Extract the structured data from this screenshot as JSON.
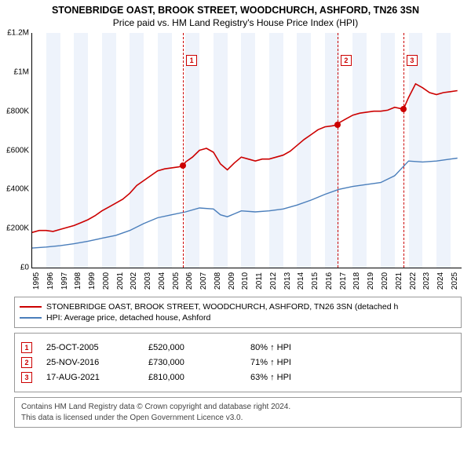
{
  "title": {
    "line1": "STONEBRIDGE OAST, BROOK STREET, WOODCHURCH, ASHFORD, TN26 3SN",
    "line2": "Price paid vs. HM Land Registry's House Price Index (HPI)",
    "fontsize_line1": 12.5,
    "fontsize_line2": 12
  },
  "chart": {
    "type": "line",
    "background_color": "#ffffff",
    "band_color": "#eef3fb",
    "axis_color": "#000000",
    "xlim": [
      1995,
      2025.8
    ],
    "ylim": [
      0,
      1200000
    ],
    "yticks": [
      {
        "v": 0,
        "label": "£0"
      },
      {
        "v": 200000,
        "label": "£200K"
      },
      {
        "v": 400000,
        "label": "£400K"
      },
      {
        "v": 600000,
        "label": "£600K"
      },
      {
        "v": 800000,
        "label": "£800K"
      },
      {
        "v": 1000000,
        "label": "£1M"
      },
      {
        "v": 1200000,
        "label": "£1.2M"
      }
    ],
    "xticks": [
      1995,
      1996,
      1997,
      1998,
      1999,
      2000,
      2001,
      2002,
      2003,
      2004,
      2005,
      2006,
      2007,
      2008,
      2009,
      2010,
      2011,
      2012,
      2013,
      2014,
      2015,
      2016,
      2017,
      2018,
      2019,
      2020,
      2021,
      2022,
      2023,
      2024,
      2025
    ],
    "series": [
      {
        "name": "property",
        "color": "#cc0000",
        "width": 1.6,
        "points": [
          [
            1995,
            180000
          ],
          [
            1995.5,
            190000
          ],
          [
            1996,
            190000
          ],
          [
            1996.5,
            185000
          ],
          [
            1997,
            195000
          ],
          [
            1997.5,
            205000
          ],
          [
            1998,
            215000
          ],
          [
            1998.5,
            230000
          ],
          [
            1999,
            245000
          ],
          [
            1999.5,
            265000
          ],
          [
            2000,
            290000
          ],
          [
            2000.5,
            310000
          ],
          [
            2001,
            330000
          ],
          [
            2001.5,
            350000
          ],
          [
            2002,
            380000
          ],
          [
            2002.5,
            420000
          ],
          [
            2003,
            445000
          ],
          [
            2003.5,
            470000
          ],
          [
            2004,
            495000
          ],
          [
            2004.5,
            505000
          ],
          [
            2005,
            510000
          ],
          [
            2005.5,
            515000
          ],
          [
            2005.82,
            520000
          ],
          [
            2006,
            540000
          ],
          [
            2006.5,
            565000
          ],
          [
            2007,
            600000
          ],
          [
            2007.5,
            610000
          ],
          [
            2008,
            590000
          ],
          [
            2008.5,
            530000
          ],
          [
            2009,
            500000
          ],
          [
            2009.5,
            535000
          ],
          [
            2010,
            565000
          ],
          [
            2010.5,
            555000
          ],
          [
            2011,
            545000
          ],
          [
            2011.5,
            555000
          ],
          [
            2012,
            555000
          ],
          [
            2012.5,
            565000
          ],
          [
            2013,
            575000
          ],
          [
            2013.5,
            595000
          ],
          [
            2014,
            625000
          ],
          [
            2014.5,
            655000
          ],
          [
            2015,
            680000
          ],
          [
            2015.5,
            705000
          ],
          [
            2016,
            720000
          ],
          [
            2016.5,
            725000
          ],
          [
            2016.9,
            730000
          ],
          [
            2017,
            740000
          ],
          [
            2017.5,
            760000
          ],
          [
            2018,
            780000
          ],
          [
            2018.5,
            790000
          ],
          [
            2019,
            795000
          ],
          [
            2019.5,
            800000
          ],
          [
            2020,
            800000
          ],
          [
            2020.5,
            805000
          ],
          [
            2021,
            820000
          ],
          [
            2021.63,
            810000
          ],
          [
            2022,
            870000
          ],
          [
            2022.5,
            940000
          ],
          [
            2023,
            920000
          ],
          [
            2023.5,
            895000
          ],
          [
            2024,
            885000
          ],
          [
            2024.5,
            895000
          ],
          [
            2025,
            900000
          ],
          [
            2025.5,
            905000
          ]
        ]
      },
      {
        "name": "hpi",
        "color": "#4a7ebb",
        "width": 1.4,
        "points": [
          [
            1995,
            100000
          ],
          [
            1996,
            105000
          ],
          [
            1997,
            112000
          ],
          [
            1998,
            122000
          ],
          [
            1999,
            135000
          ],
          [
            2000,
            150000
          ],
          [
            2001,
            165000
          ],
          [
            2002,
            190000
          ],
          [
            2003,
            225000
          ],
          [
            2004,
            255000
          ],
          [
            2005,
            270000
          ],
          [
            2006,
            285000
          ],
          [
            2007,
            305000
          ],
          [
            2008,
            300000
          ],
          [
            2008.5,
            270000
          ],
          [
            2009,
            260000
          ],
          [
            2009.5,
            275000
          ],
          [
            2010,
            290000
          ],
          [
            2011,
            285000
          ],
          [
            2012,
            290000
          ],
          [
            2013,
            300000
          ],
          [
            2014,
            320000
          ],
          [
            2015,
            345000
          ],
          [
            2016,
            375000
          ],
          [
            2017,
            400000
          ],
          [
            2018,
            415000
          ],
          [
            2019,
            425000
          ],
          [
            2020,
            435000
          ],
          [
            2021,
            470000
          ],
          [
            2022,
            545000
          ],
          [
            2023,
            540000
          ],
          [
            2024,
            545000
          ],
          [
            2025,
            555000
          ],
          [
            2025.5,
            560000
          ]
        ]
      }
    ],
    "markers": [
      {
        "n": "1",
        "year": 2005.82,
        "value": 520000
      },
      {
        "n": "2",
        "year": 2016.9,
        "value": 730000
      },
      {
        "n": "3",
        "year": 2021.63,
        "value": 810000
      }
    ],
    "marker_line_color": "#cc0000",
    "marker_dot_color": "#cc0000"
  },
  "legend": {
    "rows": [
      {
        "color": "#cc0000",
        "label": "STONEBRIDGE OAST, BROOK STREET, WOODCHURCH, ASHFORD, TN26 3SN (detached h"
      },
      {
        "color": "#4a7ebb",
        "label": "HPI: Average price, detached house, Ashford"
      }
    ]
  },
  "events": [
    {
      "n": "1",
      "date": "25-OCT-2005",
      "price": "£520,000",
      "hpi": "80% ↑ HPI"
    },
    {
      "n": "2",
      "date": "25-NOV-2016",
      "price": "£730,000",
      "hpi": "71% ↑ HPI"
    },
    {
      "n": "3",
      "date": "17-AUG-2021",
      "price": "£810,000",
      "hpi": "63% ↑ HPI"
    }
  ],
  "footer": {
    "line1": "Contains HM Land Registry data © Crown copyright and database right 2024.",
    "line2": "This data is licensed under the Open Government Licence v3.0."
  }
}
